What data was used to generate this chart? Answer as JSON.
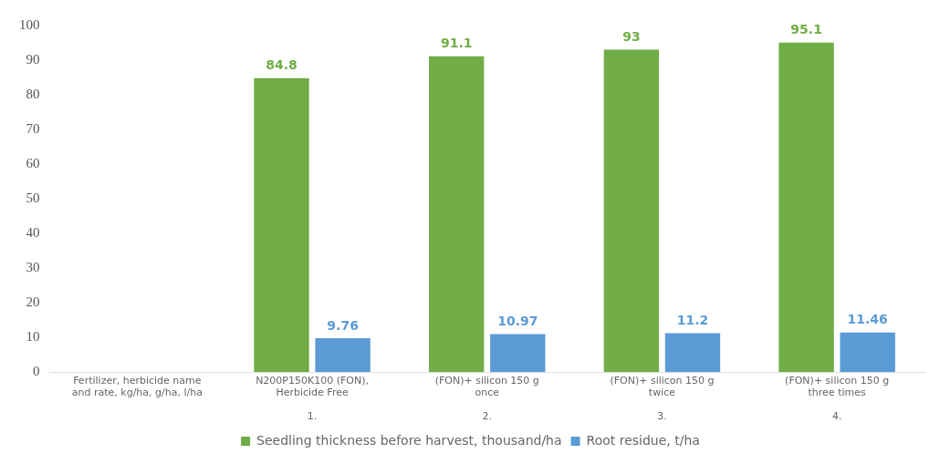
{
  "chart_data": {
    "type": "bar",
    "categories": [
      "Fertilizer, herbicide name\nand rate, kg/ha, g/ha, l/ha",
      "N200P150K100 (FON),\nHerbicide Free\n\n1.",
      "(FON)+ silicon 150 g\nonce\n\n2.",
      "(FON)+ silicon 150 g\ntwice\n\n3.",
      "(FON)+ silicon 150 g\nthree times\n\n4."
    ],
    "series": [
      {
        "name": "Seedling thickness before harvest, thousand/ha",
        "color": "#70ad47",
        "values": [
          null,
          84.8,
          91.1,
          93,
          95.1
        ]
      },
      {
        "name": "Root residue, t/ha",
        "color": "#5b9bd5",
        "values": [
          null,
          9.76,
          10.97,
          11.2,
          11.46
        ]
      }
    ],
    "ylim": [
      0,
      100
    ],
    "yticks": [
      0,
      10,
      20,
      30,
      40,
      50,
      60,
      70,
      80,
      90,
      100
    ],
    "grid": false,
    "legend": "bottom",
    "data_labels": true
  }
}
